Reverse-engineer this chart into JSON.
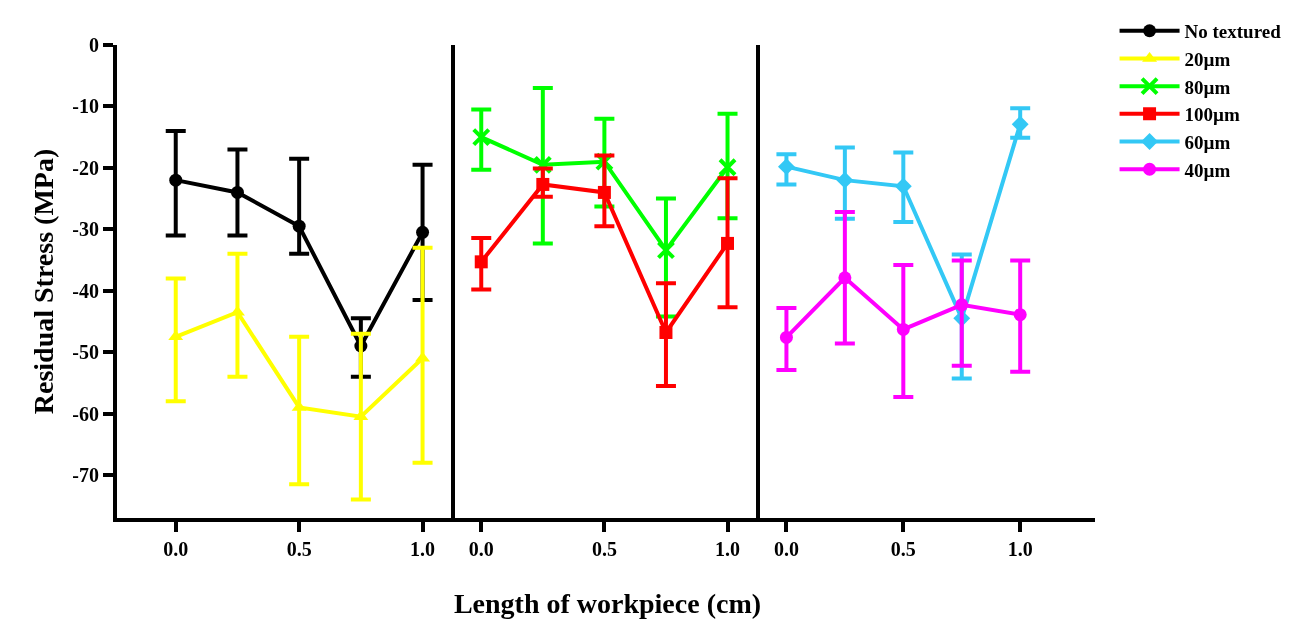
{
  "chart_data": [
    {
      "type": "line",
      "ylabel": "Residual Stress (MPa)",
      "x": [
        0,
        0.25,
        0.5,
        0.75,
        1.0
      ],
      "xlim": [
        -0.238,
        1.133
      ],
      "xticks": [
        {
          "value": 0,
          "label": "0.0"
        },
        {
          "value": 0.5,
          "label": "0.5"
        },
        {
          "value": 1.0,
          "label": "1.0"
        }
      ],
      "ylim": [
        -77,
        0
      ],
      "yticks": [
        0,
        -10,
        -20,
        -30,
        -40,
        -50,
        -60,
        -70
      ],
      "legend": "right",
      "series": [
        {
          "name": "No textured",
          "color": "#000000",
          "marker": "circle",
          "values": [
            -22,
            -24,
            -29.5,
            -49,
            -30.5
          ],
          "errors": [
            [
              -31,
              -14
            ],
            [
              -31,
              -17
            ],
            [
              -34,
              -18.5
            ],
            [
              -54,
              -44.5
            ],
            [
              -41.5,
              -19.5
            ]
          ]
        },
        {
          "name": "20µm",
          "color": "#ffff00",
          "marker": "triangle",
          "values": [
            -47.5,
            -43.5,
            -59,
            -60.5,
            -51
          ],
          "errors": [
            [
              -58,
              -38
            ],
            [
              -54,
              -34
            ],
            [
              -71.5,
              -47.5
            ],
            [
              -74,
              -47
            ],
            [
              -68,
              -33
            ]
          ]
        }
      ]
    },
    {
      "type": "line",
      "xlabel": "Length of workpiece (cm)",
      "x": [
        0,
        0.25,
        0.5,
        0.75,
        1.0
      ],
      "xlim": [
        -0.105,
        1.13
      ],
      "xticks": [
        {
          "value": 0,
          "label": "0.0"
        },
        {
          "value": 0.5,
          "label": "0.5"
        },
        {
          "value": 1.0,
          "label": "1.0"
        }
      ],
      "ylim": [
        -77,
        0
      ],
      "yticks": [
        0,
        -10,
        -20,
        -30,
        -40,
        -50,
        -60,
        -70
      ],
      "tick_labels": "x",
      "legend": "right",
      "series": [
        {
          "name": "80µm",
          "color": "#00ff00",
          "marker": "cross",
          "values": [
            -15,
            -19.5,
            -19,
            -33.4,
            -19.9
          ],
          "errors": [
            [
              -20.3,
              -10.5
            ],
            [
              -32.3,
              -7
            ],
            [
              -26.3,
              -12
            ],
            [
              -44.2,
              -25
            ],
            [
              -28.2,
              -11.2
            ]
          ]
        },
        {
          "name": "100µm",
          "color": "#ff0000",
          "marker": "square",
          "values": [
            -35.3,
            -22.7,
            -24,
            -46.8,
            -32.3
          ],
          "errors": [
            [
              -39.8,
              -31.4
            ],
            [
              -24.7,
              -20.1
            ],
            [
              -29.5,
              -18
            ],
            [
              -55.5,
              -38.8
            ],
            [
              -42.7,
              -21.7
            ]
          ]
        }
      ]
    },
    {
      "type": "line",
      "x": [
        0,
        0.25,
        0.5,
        0.75,
        1.0
      ],
      "xlim": [
        -0.115,
        1.32
      ],
      "xticks": [
        {
          "value": 0,
          "label": "0.0"
        },
        {
          "value": 0.5,
          "label": "0.5"
        },
        {
          "value": 1.0,
          "label": "1.0"
        }
      ],
      "ylim": [
        -77,
        0
      ],
      "yticks": [
        0,
        -10,
        -20,
        -30,
        -40,
        -50,
        -60,
        -70
      ],
      "tick_labels": "x",
      "legend": "right",
      "series": [
        {
          "name": "60µm",
          "color": "#33c8f5",
          "marker": "diamond",
          "values": [
            -19.8,
            -22,
            -23,
            -44.5,
            -12.9
          ],
          "errors": [
            [
              -22.7,
              -17.8
            ],
            [
              -28.3,
              -16.7
            ],
            [
              -28.8,
              -17.5
            ],
            [
              -54.3,
              -34.1
            ],
            [
              -15.1,
              -10.3
            ]
          ]
        },
        {
          "name": "40µm",
          "color": "#ff00ff",
          "marker": "circle",
          "values": [
            -47.6,
            -37.9,
            -46.3,
            -42.3,
            -43.9
          ],
          "errors": [
            [
              -52.9,
              -42.8
            ],
            [
              -48.6,
              -27.2
            ],
            [
              -57.3,
              -35.8
            ],
            [
              -52.2,
              -35.1
            ],
            [
              -53.2,
              -35.1
            ]
          ]
        }
      ]
    }
  ]
}
